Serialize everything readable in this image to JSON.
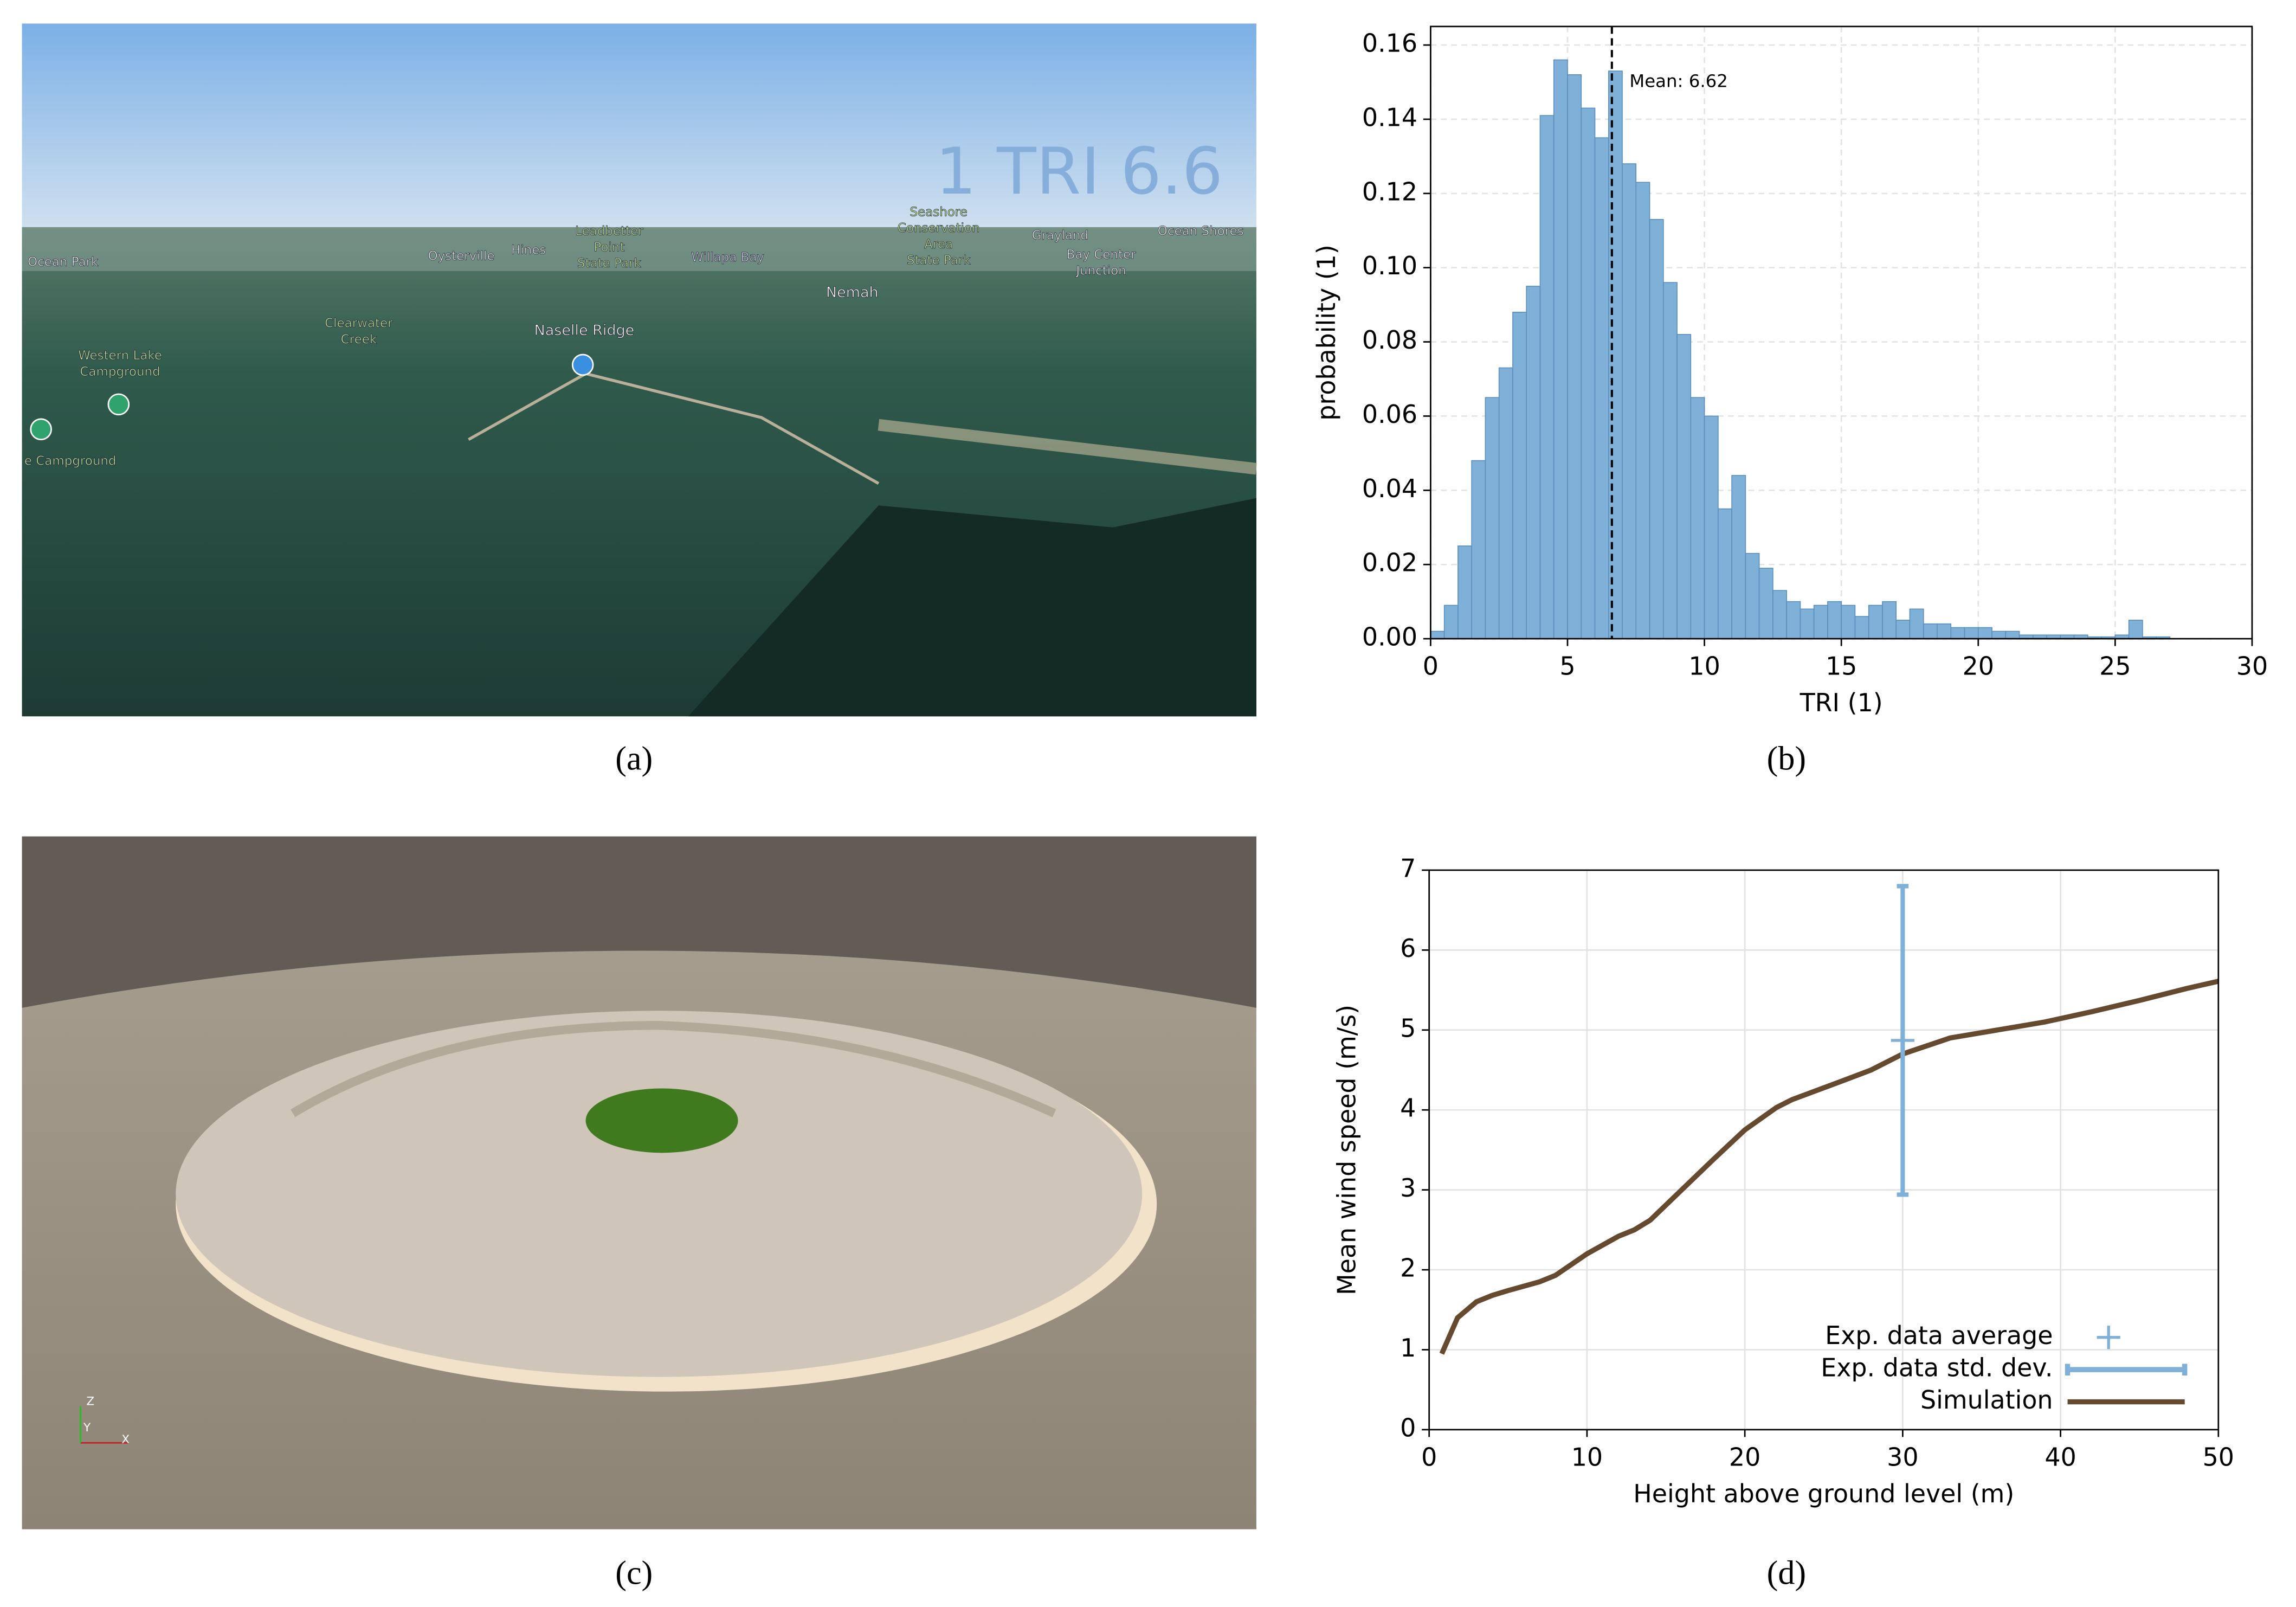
{
  "panel_a": {
    "overlay": "1 TRI 6.6",
    "labels": [
      [
        "Ocean Park"
      ],
      [
        "Oysterville"
      ],
      [
        "Hines"
      ],
      [
        "Leadbetter",
        "Point",
        "State Park"
      ],
      [
        "Willapa Bay"
      ],
      [
        "Seashore",
        "Conservation",
        "Area",
        "State Park"
      ],
      [
        "Grayland"
      ],
      [
        "Ocean Shores"
      ],
      [
        "Bay Center",
        "Junction"
      ],
      [
        "Nemah"
      ],
      [
        "Clearwater",
        "Creek"
      ],
      [
        "Naselle Ridge"
      ],
      [
        "Western Lake",
        "Campground"
      ],
      [
        "e Campground"
      ]
    ]
  },
  "panel_c": {
    "axes": [
      "Z",
      "Y",
      "X"
    ]
  },
  "captions": [
    "(a)",
    "(b)",
    "(c)",
    "(d)"
  ],
  "chart_data": [
    {
      "type": "histogram",
      "xlabel": "TRI (1)",
      "ylabel": "probability (1)",
      "color": "#7fb1d8",
      "grid": true,
      "bins": [
        0,
        0.5,
        1,
        1.5,
        2,
        2.5,
        3,
        3.5,
        4,
        4.5,
        5,
        5.5,
        6,
        6.5,
        7,
        7.5,
        8,
        8.5,
        9,
        9.5,
        10,
        10.5,
        11,
        11.5,
        12,
        12.5,
        13,
        13.5,
        14,
        14.5,
        15,
        15.5,
        16,
        16.5,
        17,
        17.5,
        18,
        18.5,
        19,
        19.5,
        20,
        20.5,
        21,
        21.5,
        22,
        22.5,
        23,
        23.5,
        24,
        24.5,
        25,
        25.5,
        26,
        26.5,
        27
      ],
      "values": [
        0.002,
        0.009,
        0.025,
        0.048,
        0.065,
        0.073,
        0.088,
        0.095,
        0.141,
        0.156,
        0.152,
        0.143,
        0.135,
        0.153,
        0.128,
        0.123,
        0.113,
        0.096,
        0.082,
        0.065,
        0.06,
        0.035,
        0.044,
        0.023,
        0.019,
        0.013,
        0.01,
        0.008,
        0.009,
        0.01,
        0.009,
        0.006,
        0.009,
        0.01,
        0.005,
        0.008,
        0.004,
        0.004,
        0.003,
        0.003,
        0.003,
        0.002,
        0.002,
        0.001,
        0.001,
        0.001,
        0.001,
        0.001,
        0.0005,
        0.0005,
        0.001,
        0.005,
        0.0005,
        0.0005
      ],
      "mean": 6.62,
      "mean_label": "Mean: 6.62",
      "xlim": [
        0,
        30
      ],
      "xticks": [
        0,
        5,
        10,
        15,
        20,
        25,
        30
      ],
      "ylim": [
        0,
        0.165
      ],
      "yticks": [
        {
          "value": 0,
          "label": "0.00"
        },
        {
          "value": 0.02,
          "label": "0.02"
        },
        {
          "value": 0.04,
          "label": "0.04"
        },
        {
          "value": 0.06,
          "label": "0.06"
        },
        {
          "value": 0.08,
          "label": "0.08"
        },
        {
          "value": 0.1,
          "label": "0.10"
        },
        {
          "value": 0.12,
          "label": "0.12"
        },
        {
          "value": 0.14,
          "label": "0.14"
        },
        {
          "value": 0.16,
          "label": "0.16"
        }
      ]
    },
    {
      "type": "line",
      "xlabel": "Height above ground level (m)",
      "ylabel": "Mean wind speed (m/s)",
      "grid": true,
      "legend": "lower right",
      "xlim": [
        0,
        50
      ],
      "xticks": [
        0,
        10,
        20,
        30,
        40,
        50
      ],
      "ylim": [
        0,
        7
      ],
      "yticks": [
        0,
        1,
        2,
        3,
        4,
        5,
        6,
        7
      ],
      "series": [
        {
          "name": "Exp. data average",
          "color": "#7fb1d8",
          "x": [
            30
          ],
          "values": [
            4.87
          ]
        },
        {
          "name": "Exp. data std. dev.",
          "color": "#7fb1d8",
          "errors": [
            1.93
          ]
        },
        {
          "name": "Simulation",
          "color": "#654a30",
          "x": [
            0.8,
            1.8,
            3,
            4,
            5,
            7,
            8,
            10,
            12,
            13,
            14,
            16,
            18,
            20,
            22,
            23,
            26,
            28,
            30,
            33,
            36,
            39,
            42,
            45,
            48,
            50
          ],
          "values": [
            0.95,
            1.4,
            1.6,
            1.68,
            1.74,
            1.85,
            1.93,
            2.2,
            2.42,
            2.5,
            2.62,
            3.0,
            3.38,
            3.75,
            4.03,
            4.13,
            4.35,
            4.5,
            4.7,
            4.9,
            5.0,
            5.1,
            5.23,
            5.37,
            5.52,
            5.61
          ]
        }
      ]
    }
  ]
}
